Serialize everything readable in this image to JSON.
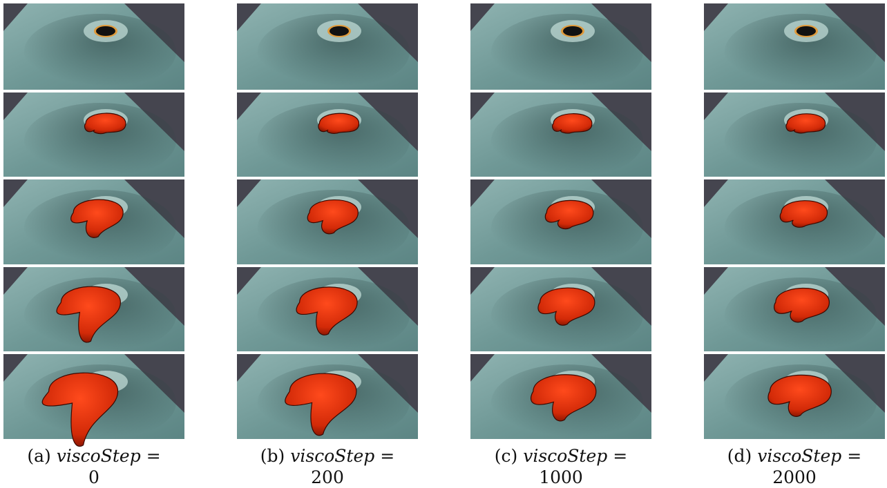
{
  "figure": {
    "panels": [
      {
        "label": "(a)",
        "variable": "viscoStep",
        "operator": "=",
        "value": "0"
      },
      {
        "label": "(b)",
        "variable": "viscoStep",
        "operator": "=",
        "value": "200"
      },
      {
        "label": "(c)",
        "variable": "viscoStep",
        "operator": "=",
        "value": "1000"
      },
      {
        "label": "(d)",
        "variable": "viscoStep",
        "operator": "=",
        "value": "2000"
      }
    ]
  }
}
